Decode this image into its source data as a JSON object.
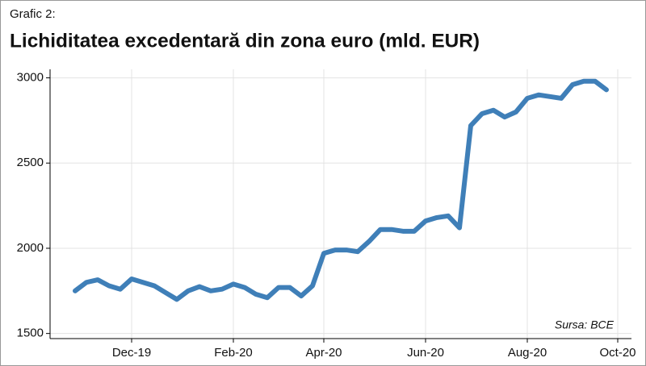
{
  "chart_data": {
    "type": "line",
    "subtitle": "Grafic 2:",
    "title": "Lichiditatea excedentară din zona euro (mld. EUR)",
    "annotation": "Sursa: BCE",
    "categories": [
      null,
      null,
      null,
      null,
      null,
      "Dec-19",
      null,
      null,
      null,
      null,
      null,
      null,
      null,
      null,
      "Feb-20",
      null,
      null,
      null,
      null,
      null,
      null,
      null,
      "Apr-20",
      null,
      null,
      null,
      null,
      null,
      null,
      null,
      null,
      "Jun-20",
      null,
      null,
      null,
      null,
      null,
      null,
      null,
      null,
      "Aug-20",
      null,
      null,
      null,
      null,
      null,
      null,
      null,
      "Oct-20"
    ],
    "series": [
      {
        "name": "Lichiditate excedentară",
        "color": "#3f7fb8",
        "values": [
          1750,
          1800,
          1815,
          1780,
          1760,
          1820,
          1800,
          1780,
          1740,
          1700,
          1750,
          1775,
          1750,
          1760,
          1790,
          1770,
          1730,
          1710,
          1770,
          1770,
          1720,
          1780,
          1970,
          1990,
          1990,
          1980,
          2040,
          2110,
          2110,
          2100,
          2100,
          2160,
          2180,
          2190,
          2120,
          2720,
          2790,
          2810,
          2770,
          2800,
          2880,
          2900,
          2890,
          2880,
          2960,
          2980,
          2980,
          2930,
          null
        ]
      }
    ],
    "ylim": [
      1470,
      3050
    ],
    "yticks": [
      1500,
      2000,
      2500,
      3000
    ],
    "grid": true
  }
}
